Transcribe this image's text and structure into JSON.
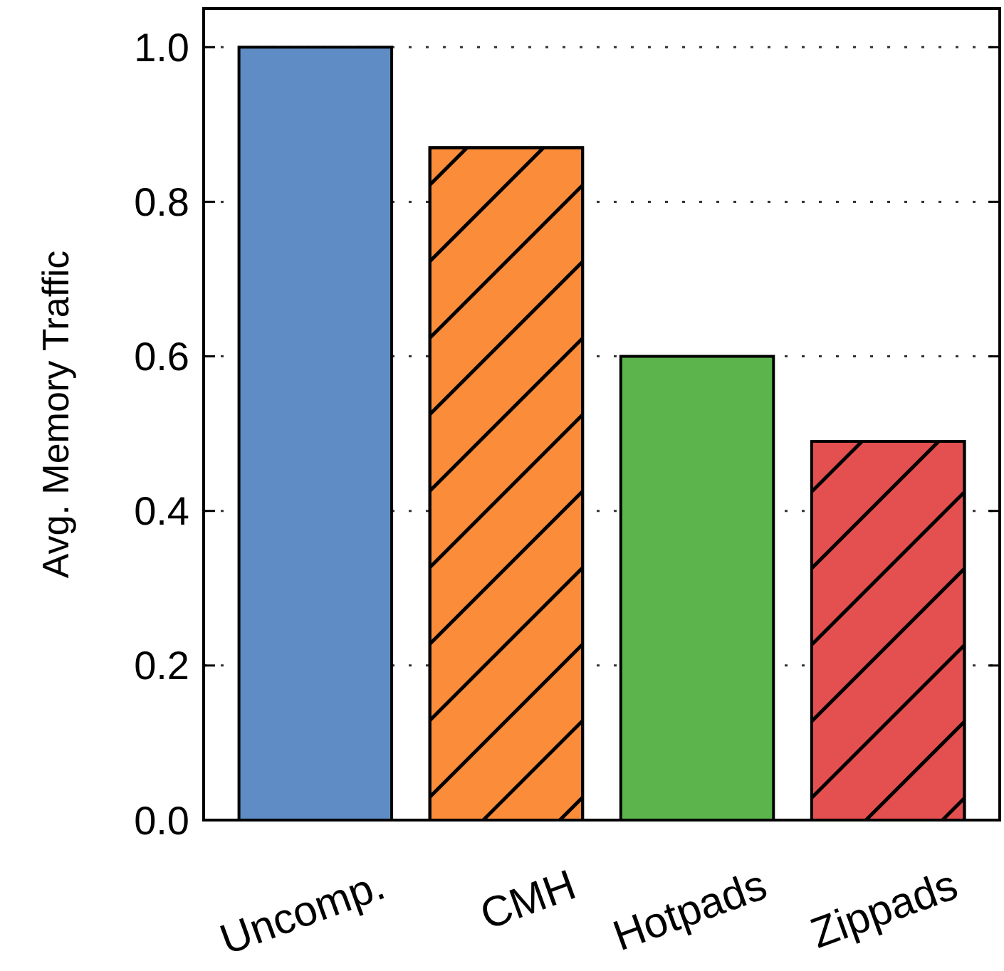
{
  "chart_data": {
    "type": "bar",
    "ylabel": "Avg. Memory Traffic",
    "categories": [
      "Uncomp.",
      "CMH",
      "Hotpads",
      "Zippads"
    ],
    "values": [
      1.0,
      0.87,
      0.6,
      0.49
    ],
    "colors": [
      "#5f8cc4",
      "#fb8c3a",
      "#5bb44c",
      "#e45050"
    ],
    "ylim": [
      0,
      1.05
    ],
    "yticks": [
      {
        "value": 0,
        "label": "0.0"
      },
      {
        "value": 0.2,
        "label": "0.2"
      },
      {
        "value": 0.4,
        "label": "0.4"
      },
      {
        "value": 0.6,
        "label": "0.6"
      },
      {
        "value": 0.8,
        "label": "0.8"
      },
      {
        "value": 1.0,
        "label": "1.0"
      }
    ],
    "grid": "y"
  }
}
